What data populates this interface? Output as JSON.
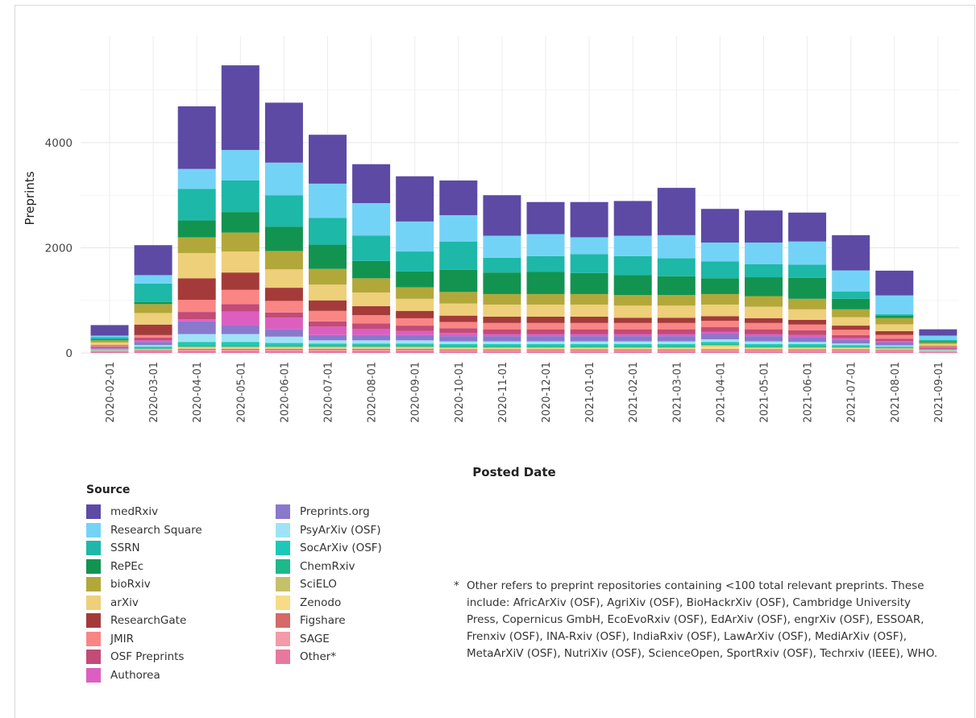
{
  "chart_data": {
    "type": "bar",
    "stacked": true,
    "xlabel": "Posted Date",
    "ylabel": "Preprints",
    "ylim": [
      0,
      5800
    ],
    "yticks": [
      0,
      2000,
      4000
    ],
    "grid": true,
    "categories": [
      "2020-02-01",
      "2020-03-01",
      "2020-04-01",
      "2020-05-01",
      "2020-06-01",
      "2020-07-01",
      "2020-08-01",
      "2020-09-01",
      "2020-10-01",
      "2020-11-01",
      "2020-12-01",
      "2021-01-01",
      "2021-02-01",
      "2021-03-01",
      "2021-04-01",
      "2021-05-01",
      "2021-06-01",
      "2021-07-01",
      "2021-08-01",
      "2021-09-01"
    ],
    "legend_title": "Source",
    "legend_position": "bottom-left",
    "series": [
      {
        "name": "Other*",
        "color": "#e8789e",
        "values": [
          30,
          40,
          40,
          40,
          40,
          40,
          40,
          40,
          30,
          30,
          30,
          30,
          30,
          30,
          30,
          30,
          30,
          30,
          30,
          20
        ]
      },
      {
        "name": "SAGE",
        "color": "#f49aa8",
        "values": [
          5,
          10,
          20,
          20,
          20,
          20,
          20,
          20,
          20,
          20,
          20,
          20,
          20,
          20,
          20,
          20,
          20,
          20,
          15,
          5
        ]
      },
      {
        "name": "Figshare",
        "color": "#d46a6a",
        "values": [
          5,
          10,
          20,
          20,
          20,
          20,
          20,
          20,
          20,
          20,
          20,
          20,
          20,
          20,
          20,
          20,
          20,
          20,
          15,
          5
        ]
      },
      {
        "name": "Zenodo",
        "color": "#f6dc86",
        "values": [
          5,
          10,
          20,
          20,
          20,
          20,
          20,
          20,
          20,
          20,
          20,
          20,
          20,
          20,
          60,
          20,
          20,
          20,
          15,
          5
        ]
      },
      {
        "name": "SciELO",
        "color": "#c5c16a",
        "values": [
          5,
          10,
          20,
          20,
          20,
          20,
          20,
          20,
          20,
          20,
          20,
          20,
          20,
          20,
          20,
          20,
          20,
          20,
          15,
          5
        ]
      },
      {
        "name": "ChemRxiv",
        "color": "#1eb88a",
        "values": [
          5,
          20,
          30,
          30,
          30,
          30,
          30,
          30,
          30,
          30,
          30,
          30,
          30,
          30,
          30,
          30,
          30,
          20,
          15,
          5
        ]
      },
      {
        "name": "SocArXiv (OSF)",
        "color": "#1ec8b8",
        "values": [
          5,
          20,
          60,
          60,
          40,
          30,
          30,
          30,
          30,
          30,
          30,
          30,
          30,
          30,
          30,
          30,
          30,
          20,
          15,
          5
        ]
      },
      {
        "name": "PsyArXiv (OSF)",
        "color": "#9ee3f5",
        "values": [
          10,
          30,
          150,
          150,
          120,
          60,
          60,
          60,
          50,
          50,
          50,
          50,
          50,
          50,
          50,
          50,
          40,
          30,
          25,
          10
        ]
      },
      {
        "name": "Preprints.org",
        "color": "#8a78cc",
        "values": [
          20,
          60,
          240,
          170,
          140,
          100,
          100,
          100,
          100,
          100,
          100,
          100,
          100,
          100,
          100,
          100,
          90,
          70,
          55,
          15
        ]
      },
      {
        "name": "Authorea",
        "color": "#dc5fc0",
        "values": [
          10,
          30,
          40,
          260,
          220,
          160,
          120,
          80,
          60,
          40,
          40,
          40,
          40,
          40,
          40,
          40,
          40,
          30,
          25,
          10
        ]
      },
      {
        "name": "OSF Preprints",
        "color": "#c24b77",
        "values": [
          20,
          50,
          140,
          140,
          100,
          100,
          100,
          100,
          90,
          90,
          90,
          90,
          90,
          90,
          90,
          90,
          90,
          60,
          45,
          15
        ]
      },
      {
        "name": "JMIR",
        "color": "#fa8585",
        "values": [
          20,
          50,
          230,
          270,
          220,
          200,
          160,
          140,
          120,
          120,
          120,
          120,
          120,
          120,
          120,
          120,
          110,
          100,
          75,
          20
        ]
      },
      {
        "name": "ResearchGate",
        "color": "#a43b3a",
        "values": [
          10,
          200,
          410,
          330,
          250,
          200,
          170,
          140,
          120,
          120,
          120,
          120,
          100,
          100,
          90,
          90,
          90,
          80,
          70,
          10
        ]
      },
      {
        "name": "arXiv",
        "color": "#eecf7a",
        "values": [
          50,
          220,
          480,
          400,
          350,
          300,
          260,
          230,
          230,
          230,
          230,
          230,
          230,
          230,
          220,
          220,
          200,
          160,
          130,
          40
        ]
      },
      {
        "name": "bioRxiv",
        "color": "#b2a83a",
        "values": [
          40,
          170,
          300,
          360,
          350,
          300,
          270,
          220,
          220,
          200,
          200,
          200,
          200,
          200,
          200,
          200,
          200,
          150,
          120,
          30
        ]
      },
      {
        "name": "RePEc",
        "color": "#129450",
        "values": [
          20,
          40,
          320,
          390,
          460,
          460,
          330,
          300,
          420,
          410,
          420,
          400,
          380,
          360,
          300,
          360,
          400,
          200,
          40,
          20
        ]
      },
      {
        "name": "SSRN",
        "color": "#1db8a8",
        "values": [
          40,
          350,
          600,
          600,
          600,
          510,
          480,
          380,
          540,
          280,
          300,
          360,
          360,
          340,
          320,
          250,
          250,
          140,
          30,
          30
        ]
      },
      {
        "name": "Research Square",
        "color": "#73d3f6",
        "values": [
          30,
          160,
          380,
          580,
          620,
          650,
          620,
          570,
          500,
          420,
          420,
          320,
          390,
          440,
          360,
          410,
          440,
          400,
          360,
          80
        ]
      },
      {
        "name": "medRxiv",
        "color": "#5c4aa5",
        "values": [
          200,
          570,
          1190,
          1610,
          1140,
          930,
          740,
          860,
          660,
          770,
          610,
          670,
          660,
          900,
          640,
          610,
          550,
          670,
          470,
          120
        ]
      }
    ]
  },
  "footnote": {
    "star": "*",
    "text": "Other refers to preprint repositories containing <100 total relevant preprints. These include: AfricArXiv (OSF), AgriXiv (OSF), BioHackrXiv (OSF), Cambridge University Press, Copernicus GmbH, EcoEvoRxiv (OSF), EdArXiv (OSF), engrXiv (OSF), ESSOAR, Frenxiv (OSF), INA-Rxiv (OSF), IndiaRxiv (OSF), LawArXiv (OSF), MediArXiv (OSF), MetaArXiV (OSF), NutriXiv (OSF), ScienceOpen, SportRxiv (OSF), Techrxiv (IEEE), WHO."
  }
}
